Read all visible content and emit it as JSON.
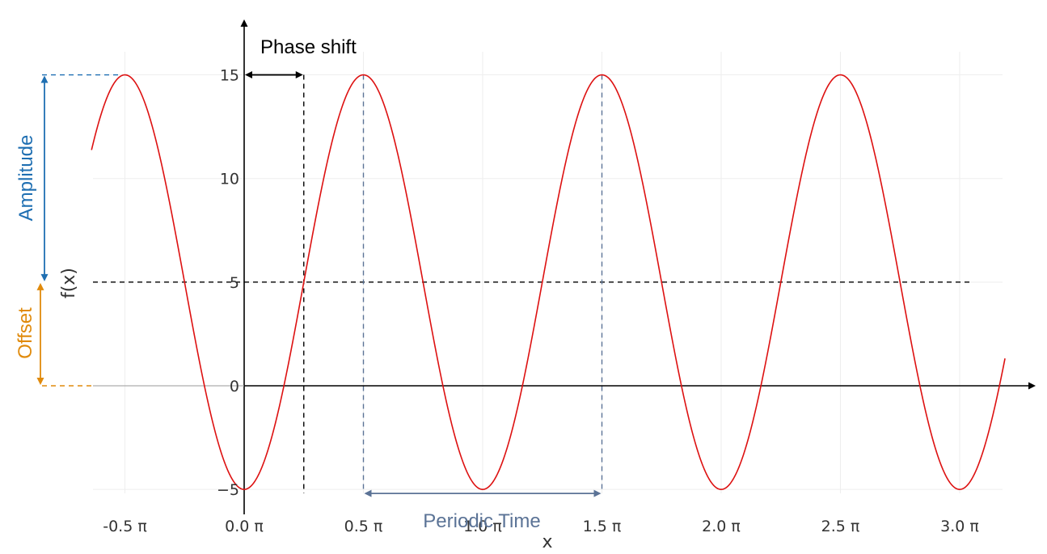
{
  "chart_data": {
    "type": "line",
    "function": "f(x) = 10*sin(2x - π/2) + 5",
    "xlabel": "x",
    "ylabel": "f(x)",
    "xlim_pi": [
      -0.64,
      3.19
    ],
    "ylim": [
      -5.5,
      15.5
    ],
    "x_ticks": [
      {
        "value_pi": -0.5,
        "label": "-0.5 π"
      },
      {
        "value_pi": 0.0,
        "label": "0.0 π"
      },
      {
        "value_pi": 0.5,
        "label": "0.5 π"
      },
      {
        "value_pi": 1.0,
        "label": "1.0 π"
      },
      {
        "value_pi": 1.5,
        "label": "1.5 π"
      },
      {
        "value_pi": 2.0,
        "label": "2.0 π"
      },
      {
        "value_pi": 2.5,
        "label": "2.5 π"
      },
      {
        "value_pi": 3.0,
        "label": "3.0 π"
      }
    ],
    "y_ticks": [
      {
        "value": -5,
        "label": "−5"
      },
      {
        "value": 0,
        "label": "0"
      },
      {
        "value": 5,
        "label": "5"
      },
      {
        "value": 10,
        "label": "10"
      },
      {
        "value": 15,
        "label": "15"
      }
    ],
    "series": [
      {
        "color": "#dd1111",
        "amplitude": 10,
        "offset": 5,
        "period_pi": 1.0,
        "phase_shift_pi": 0.25,
        "x_range_pi": [
          -0.64,
          3.19
        ]
      }
    ],
    "annotations": {
      "phase_shift": {
        "label": "Phase shift",
        "from_pi": 0.0,
        "to_pi": 0.25,
        "y": 15,
        "color": "#000000"
      },
      "periodic_time": {
        "label": "Periodic Time",
        "from_pi": 0.5,
        "to_pi": 1.5,
        "y": -5,
        "color": "#5b7396"
      },
      "amplitude": {
        "label": "Amplitude",
        "from": 5,
        "to": 15,
        "color": "#1f6fb2"
      },
      "offset": {
        "label": "Offset",
        "from": 0,
        "to": 5,
        "color": "#e08a0c"
      },
      "offset_line_y": 5
    },
    "grid": true
  }
}
